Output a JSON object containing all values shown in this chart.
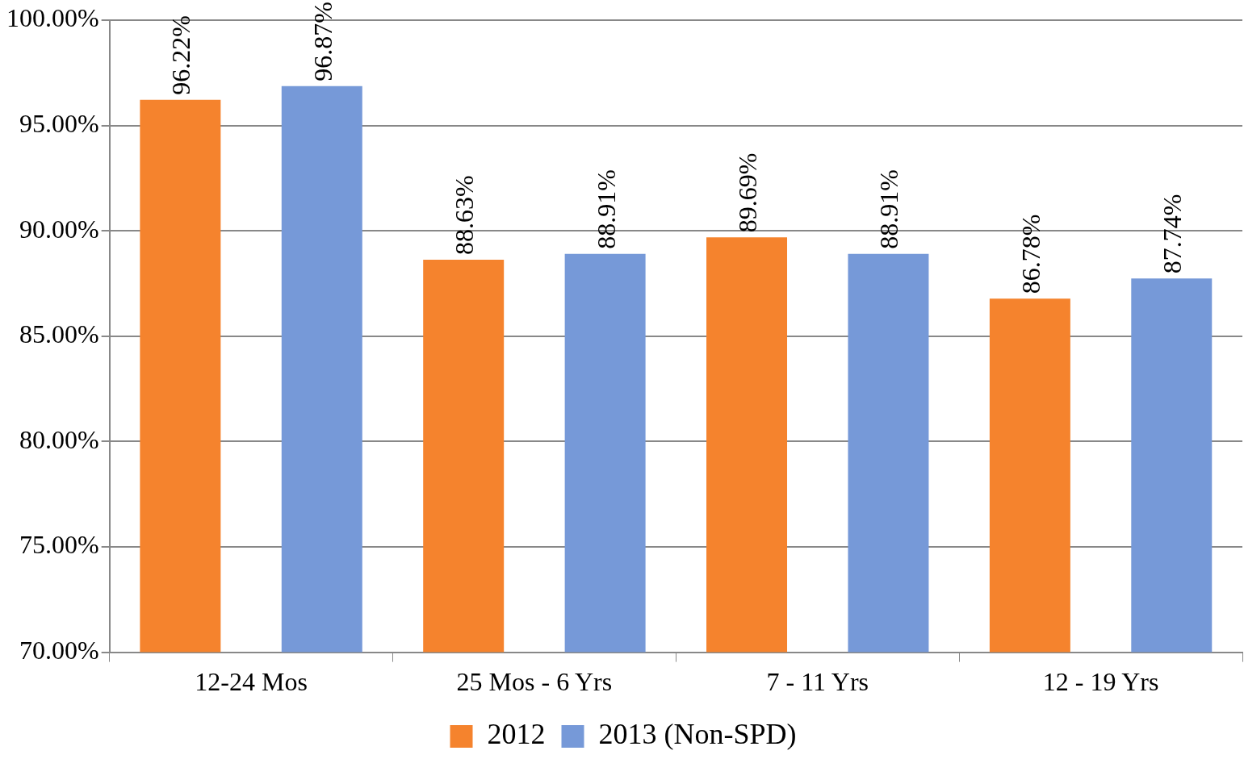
{
  "chart_data": {
    "type": "bar",
    "categories": [
      "12-24 Mos",
      "25 Mos - 6 Yrs",
      "7 - 11 Yrs",
      "12 - 19 Yrs"
    ],
    "series": [
      {
        "name": "2012",
        "color": "#f5832d",
        "values": [
          96.22,
          88.63,
          89.69,
          86.78
        ],
        "value_labels": [
          "96.22%",
          "88.63%",
          "89.69%",
          "86.78%"
        ]
      },
      {
        "name": "2013 (Non-SPD)",
        "color": "#7699d8",
        "values": [
          96.87,
          88.91,
          88.91,
          87.74
        ],
        "value_labels": [
          "96.87%",
          "88.91%",
          "88.91%",
          "87.74%"
        ]
      }
    ],
    "ylim": [
      70,
      100
    ],
    "yticks": [
      {
        "value": 70,
        "label": "70.00%"
      },
      {
        "value": 75,
        "label": "75.00%"
      },
      {
        "value": 80,
        "label": "80.00%"
      },
      {
        "value": 85,
        "label": "85.00%"
      },
      {
        "value": 90,
        "label": "90.00%"
      },
      {
        "value": 95,
        "label": "95.00%"
      },
      {
        "value": 100,
        "label": "100.00%"
      }
    ],
    "grid": "y",
    "legend": "bottom"
  }
}
